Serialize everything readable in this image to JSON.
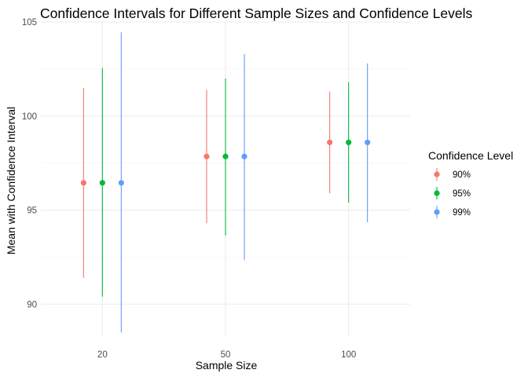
{
  "chart_data": {
    "type": "errorbar",
    "title": "Confidence Intervals for Different Sample Sizes and Confidence Levels",
    "xlabel": "Sample Size",
    "ylabel": "Mean with Confidence Interval",
    "categories": [
      "20",
      "50",
      "100"
    ],
    "ylim": [
      88.3,
      105.0
    ],
    "yticks": [
      90,
      95,
      100,
      105
    ],
    "grid": true,
    "legend": {
      "title": "Confidence Level",
      "position": "right"
    },
    "series": [
      {
        "name": "90%",
        "color": "#F8766D",
        "mean": [
          96.45,
          97.85,
          98.6
        ],
        "lower": [
          91.4,
          94.3,
          95.9
        ],
        "upper": [
          101.5,
          101.4,
          101.3
        ]
      },
      {
        "name": "95%",
        "color": "#00BA38",
        "mean": [
          96.45,
          97.85,
          98.6
        ],
        "lower": [
          90.4,
          93.65,
          95.4
        ],
        "upper": [
          102.55,
          102.0,
          101.8
        ]
      },
      {
        "name": "99%",
        "color": "#619CFF",
        "mean": [
          96.45,
          97.85,
          98.6
        ],
        "lower": [
          88.5,
          92.35,
          94.35
        ],
        "upper": [
          104.45,
          103.3,
          102.8
        ]
      }
    ]
  }
}
